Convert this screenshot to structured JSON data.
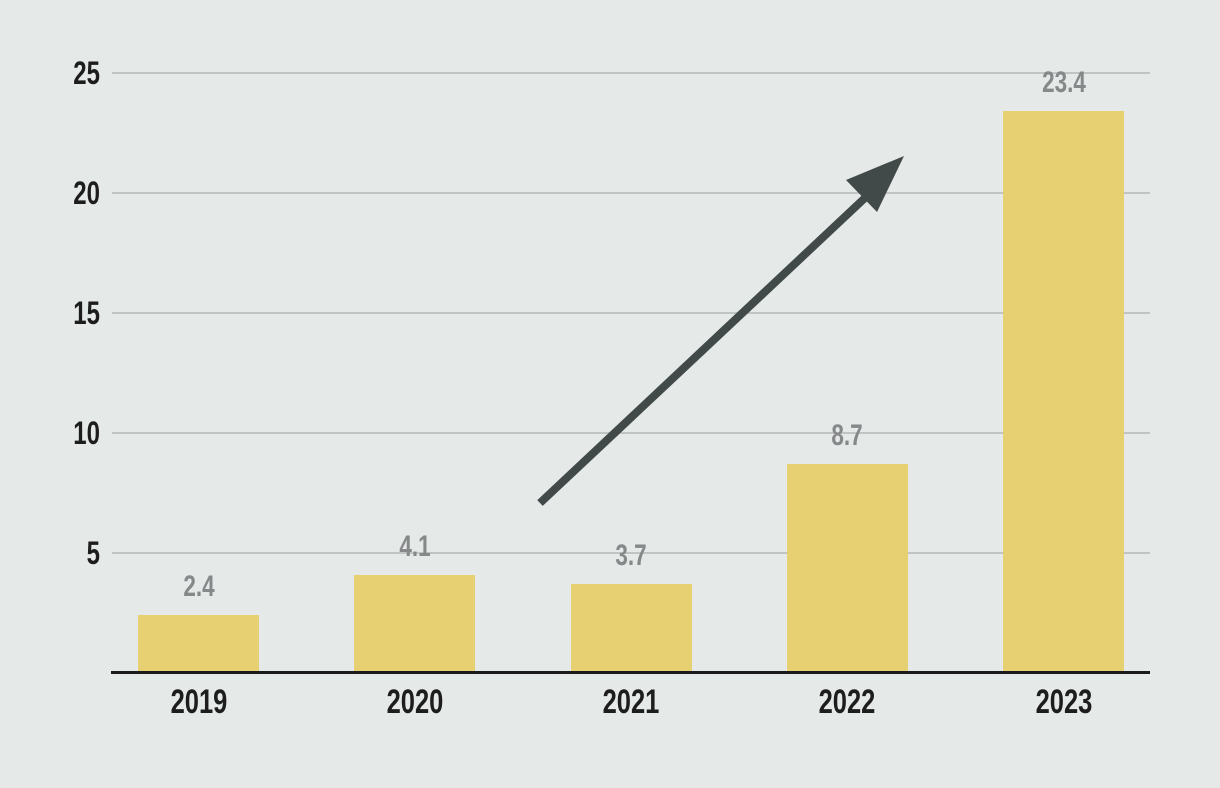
{
  "chart_data": {
    "type": "bar",
    "title": "",
    "xlabel": "",
    "ylabel": "",
    "categories": [
      "2019",
      "2020",
      "2021",
      "2022",
      "2023"
    ],
    "values": [
      2.4,
      4.1,
      3.7,
      8.7,
      23.4
    ],
    "value_labels": [
      "2.4",
      "4.1",
      "3.7",
      "8.7",
      "23.4"
    ],
    "y_ticks": [
      5,
      10,
      15,
      20,
      25
    ],
    "ylim": [
      0,
      25
    ],
    "grid": true,
    "legend": false,
    "annotation": {
      "type": "arrow",
      "direction": "up-right",
      "meaning": "upward growth trend across bars"
    }
  },
  "style": {
    "background_color": "#e5e9e8",
    "bar_color": "#e6d072",
    "grid_color": "#c0c4c3",
    "axis_color": "#1b1b1b",
    "tick_label_color": "#1d1d1d",
    "value_label_color": "#868889",
    "arrow_color": "#414a48"
  }
}
